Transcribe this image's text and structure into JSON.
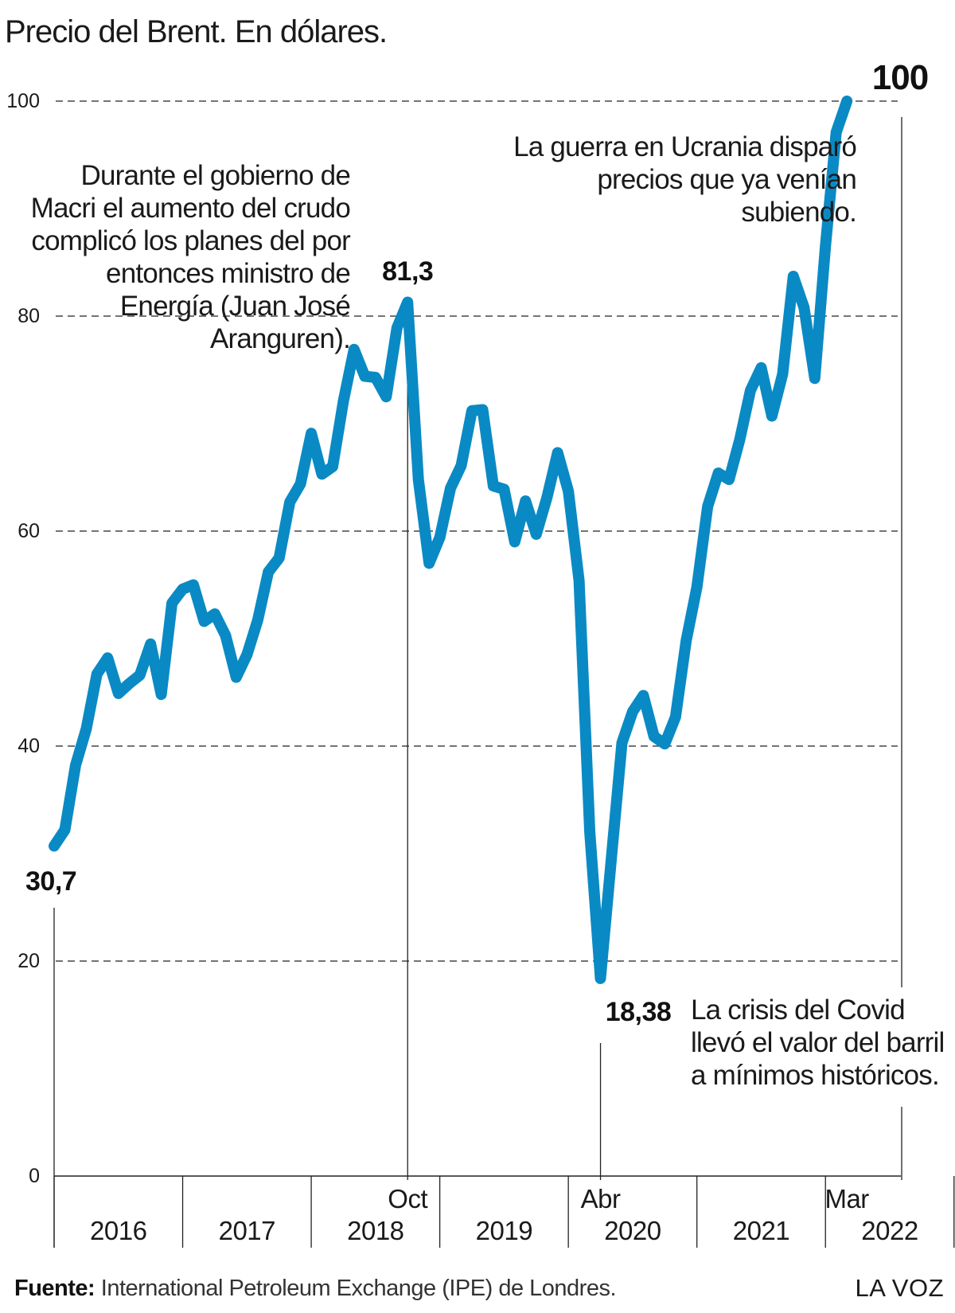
{
  "chart_data": {
    "type": "line",
    "title": "Precio del Brent. En dólares.",
    "ylim": [
      0,
      100
    ],
    "yticks": [
      0,
      20,
      40,
      60,
      80,
      100
    ],
    "grid": true,
    "line_color": "#0a8ac4",
    "x_axis": {
      "year_labels": [
        "2016",
        "2017",
        "2018",
        "2019",
        "2020",
        "2021",
        "2022"
      ],
      "month_labels": [
        {
          "text": "Oct",
          "year": "2018"
        },
        {
          "text": "Abr",
          "year": "2020"
        },
        {
          "text": "Mar",
          "year": "2022"
        }
      ]
    },
    "series": [
      {
        "x": [
          "2016-01",
          "2016-02",
          "2016-03",
          "2016-04",
          "2016-05",
          "2016-06",
          "2016-07",
          "2016-08",
          "2016-09",
          "2016-10",
          "2016-11",
          "2016-12",
          "2017-01",
          "2017-02",
          "2017-03",
          "2017-04",
          "2017-05",
          "2017-06",
          "2017-07",
          "2017-08",
          "2017-09",
          "2017-10",
          "2017-11",
          "2017-12",
          "2018-01",
          "2018-02",
          "2018-03",
          "2018-04",
          "2018-05",
          "2018-06",
          "2018-07",
          "2018-08",
          "2018-09",
          "2018-10",
          "2018-11",
          "2018-12",
          "2019-01",
          "2019-02",
          "2019-03",
          "2019-04",
          "2019-05",
          "2019-06",
          "2019-07",
          "2019-08",
          "2019-09",
          "2019-10",
          "2019-11",
          "2019-12",
          "2020-01",
          "2020-02",
          "2020-03",
          "2020-04",
          "2020-05",
          "2020-06",
          "2020-07",
          "2020-08",
          "2020-09",
          "2020-10",
          "2020-11",
          "2020-12",
          "2021-01",
          "2021-02",
          "2021-03",
          "2021-04",
          "2021-05",
          "2021-06",
          "2021-07",
          "2021-08",
          "2021-09",
          "2021-10",
          "2021-11",
          "2021-12",
          "2022-01",
          "2022-02",
          "2022-03"
        ],
        "y": [
          30.7,
          32.2,
          38.2,
          41.6,
          46.7,
          48.2,
          44.9,
          45.8,
          46.6,
          49.5,
          44.8,
          53.3,
          54.6,
          55.0,
          51.6,
          52.3,
          50.3,
          46.4,
          48.5,
          51.7,
          56.2,
          57.5,
          62.7,
          64.4,
          69.1,
          65.3,
          66.0,
          72.1,
          76.9,
          74.4,
          74.3,
          72.5,
          78.9,
          81.3,
          64.8,
          57.0,
          59.4,
          64.0,
          66.1,
          71.2,
          71.3,
          64.2,
          63.9,
          59.0,
          62.8,
          59.7,
          63.1,
          67.3,
          63.7,
          55.4,
          32.0,
          18.38,
          29.4,
          40.3,
          43.2,
          44.7,
          40.9,
          40.2,
          42.7,
          49.8,
          54.8,
          62.3,
          65.4,
          64.8,
          68.5,
          73.1,
          75.2,
          70.7,
          74.6,
          83.7,
          80.8,
          74.2,
          86.5,
          97.1,
          100
        ]
      }
    ],
    "data_labels": {
      "start": "30,7",
      "oct2018": "81,3",
      "abr2020": "18,38",
      "mar2022": "100"
    },
    "annotations": {
      "macri": [
        "Durante el gobierno de",
        "Macri el aumento del crudo",
        "complicó los planes del por",
        "entonces ministro de",
        "Energía (Juan José",
        "Aranguren)."
      ],
      "guerra": [
        "La guerra en Ucrania disparó",
        "precios que ya venían",
        "subiendo."
      ],
      "covid": [
        "La crisis del Covid",
        "llevó el valor del barril",
        "a mínimos históricos."
      ]
    }
  },
  "footer": {
    "source_label": "Fuente:",
    "source_text": " International Petroleum Exchange (IPE) de Londres.",
    "brand": "LA VOZ"
  }
}
